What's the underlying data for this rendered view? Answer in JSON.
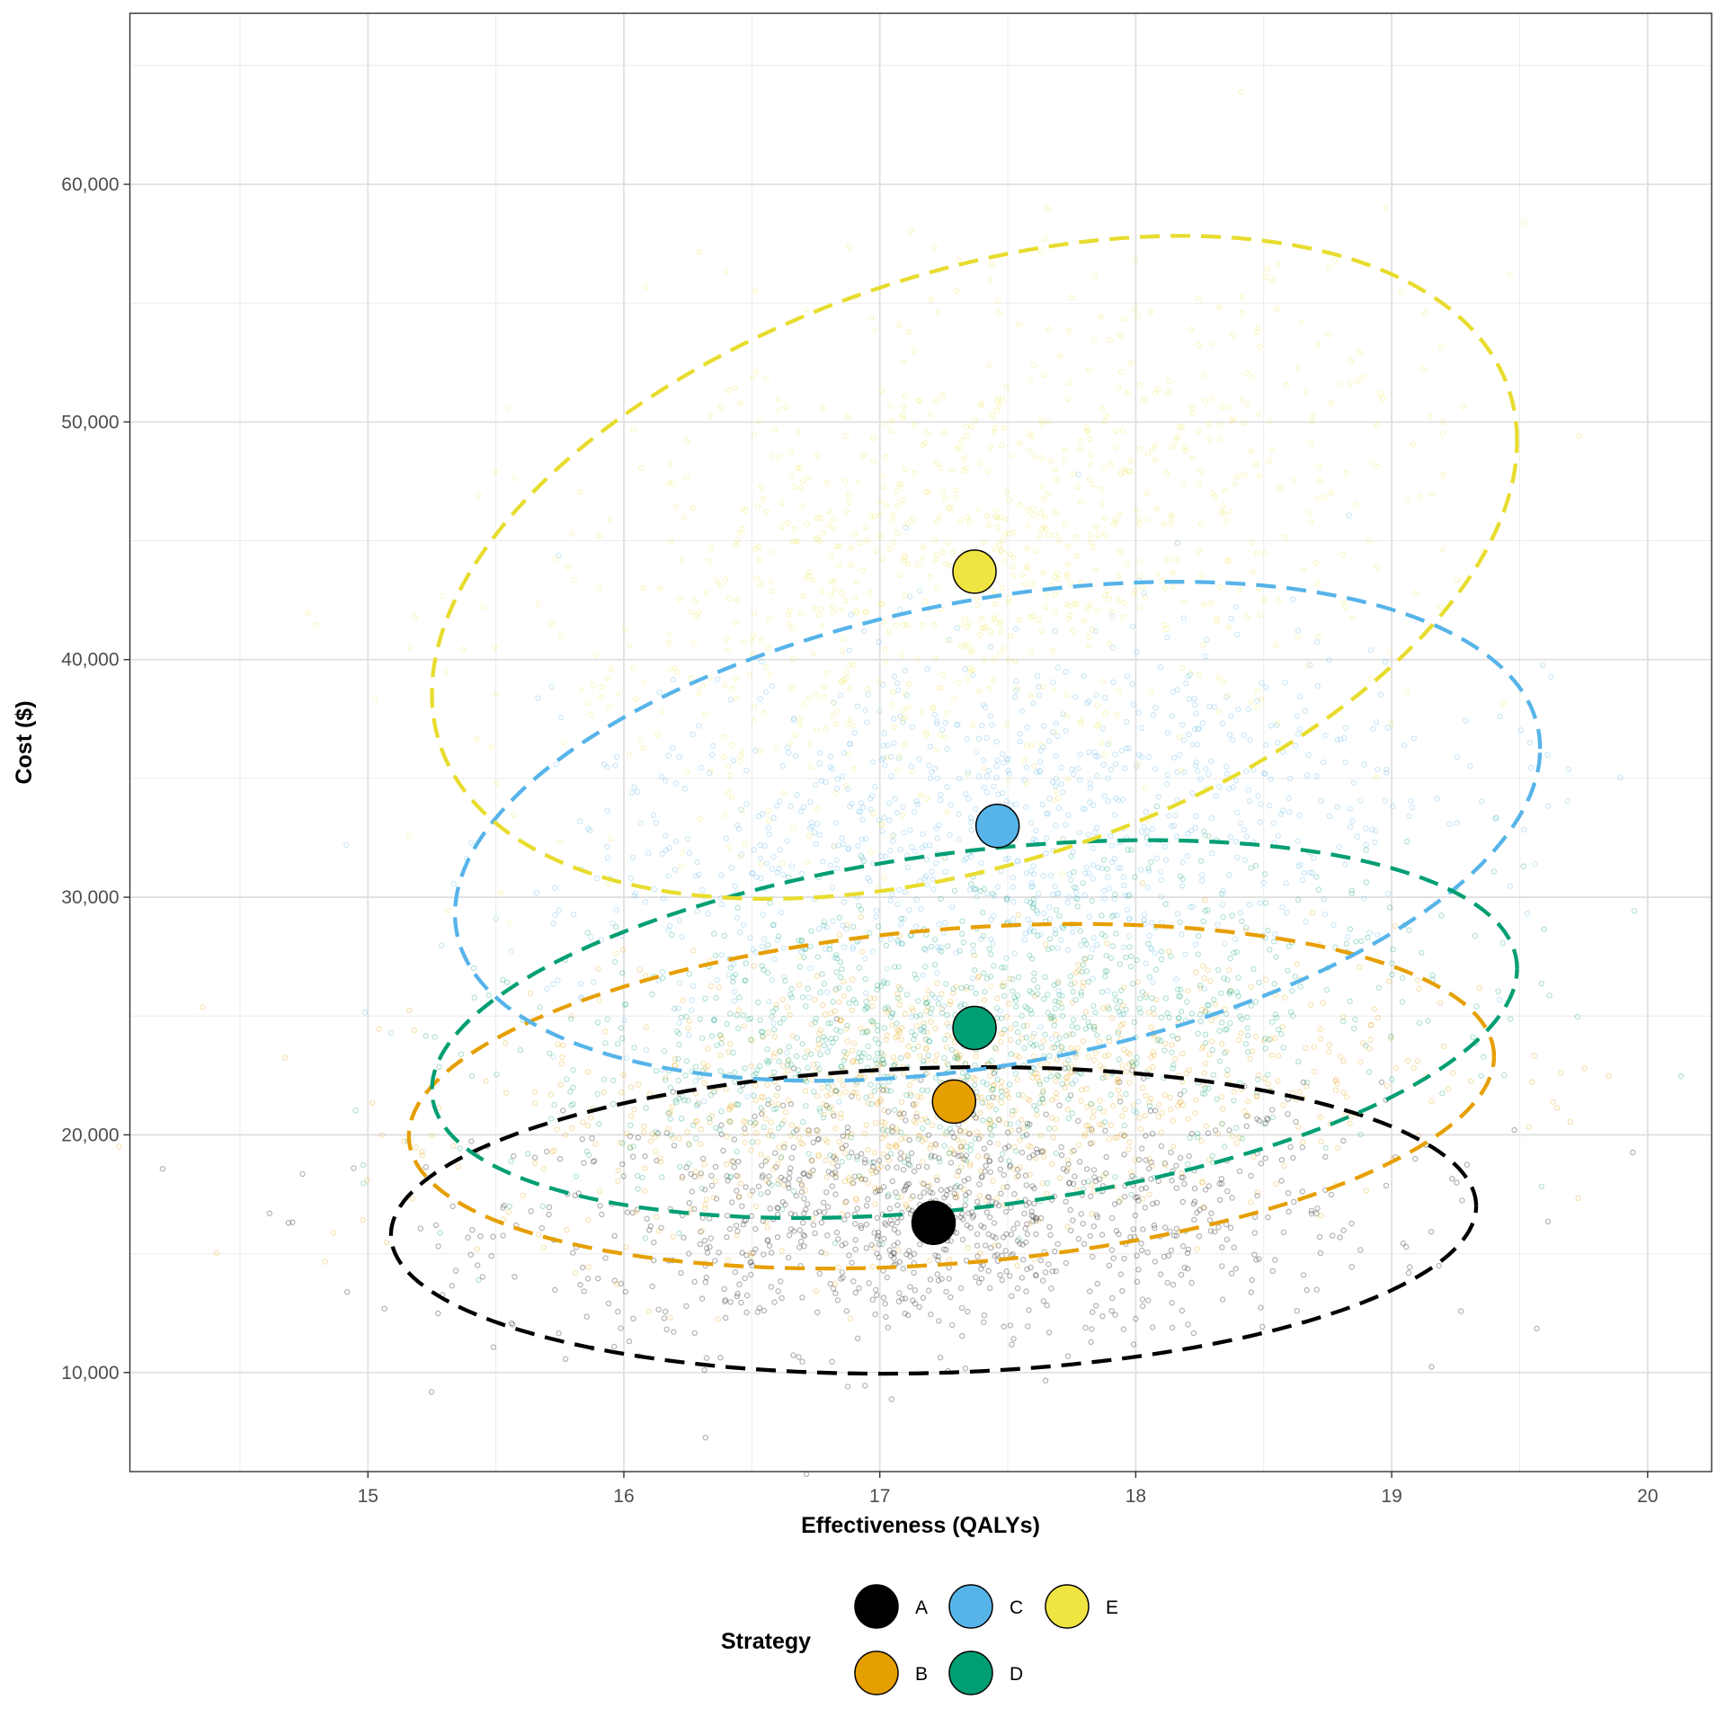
{
  "chart_data": {
    "type": "scatter",
    "title": "",
    "xlabel": "Effectiveness (QALYs)",
    "ylabel": "Cost ($)",
    "xlim": [
      14.07,
      20.25
    ],
    "ylim": [
      5830,
      67200
    ],
    "x_ticks": [
      15,
      16,
      17,
      18,
      19,
      20
    ],
    "x_tick_labels": [
      "15",
      "16",
      "17",
      "18",
      "19",
      "20"
    ],
    "y_ticks": [
      10000,
      20000,
      30000,
      40000,
      50000,
      60000
    ],
    "y_tick_labels": [
      "10,000",
      "20,000",
      "30,000",
      "40,000",
      "50,000",
      "60,000"
    ],
    "grid": true,
    "legend": {
      "title": "Strategy",
      "placement": "bottom",
      "entries": [
        "A",
        "B",
        "C",
        "D",
        "E"
      ]
    },
    "series": [
      {
        "name": "A",
        "color": "#000000",
        "mean": {
          "x": 17.21,
          "y": 16300
        },
        "ellipse": {
          "cx": 17.21,
          "cy": 16400,
          "x_half_width": 2.12,
          "y_half_height": 6450,
          "y_at_x_extremes": [
            15800,
            17000
          ]
        }
      },
      {
        "name": "B",
        "color": "#E69F00",
        "mean": {
          "x": 17.29,
          "y": 21400
        },
        "ellipse": {
          "cx": 17.28,
          "cy": 21400,
          "x_half_width": 2.12,
          "y_half_height": 7250,
          "y_at_x_extremes": [
            19950,
            23300
          ]
        }
      },
      {
        "name": "C",
        "color": "#56B4E9",
        "mean": {
          "x": 17.46,
          "y": 33000
        },
        "ellipse": {
          "cx": 17.46,
          "cy": 32800,
          "x_half_width": 2.12,
          "y_half_height": 10500,
          "y_at_x_extremes": [
            29300,
            36250
          ]
        }
      },
      {
        "name": "D",
        "color": "#009E73",
        "mean": {
          "x": 17.37,
          "y": 24500
        },
        "ellipse": {
          "cx": 17.37,
          "cy": 24450,
          "x_half_width": 2.12,
          "y_half_height": 7950,
          "y_at_x_extremes": [
            21900,
            27000
          ]
        }
      },
      {
        "name": "E",
        "color": "#F0E442",
        "mean": {
          "x": 17.37,
          "y": 43700
        },
        "ellipse": {
          "cx": 17.37,
          "cy": 43700,
          "x_half_width": 2.12,
          "y_half_height": 13950,
          "y_at_x_extremes": [
            38560,
            49200
          ]
        }
      }
    ]
  }
}
